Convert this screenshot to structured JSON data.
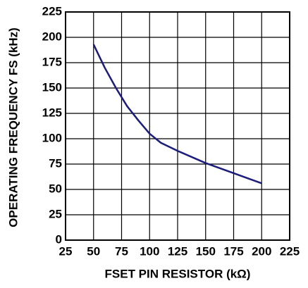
{
  "chart_data": {
    "type": "line",
    "x_label": "FSET PIN RESISTOR (kΩ)",
    "y_label": "OPERATING FREQUENCY FS (kHz)",
    "x": [
      50,
      60,
      70,
      80,
      90,
      100,
      110,
      125,
      150,
      175,
      200
    ],
    "series": [
      {
        "name": "Frequency",
        "color": "#1c1c7c",
        "values": [
          193,
          170,
          150,
          132,
          118,
          105,
          96,
          88,
          76,
          66,
          56
        ]
      }
    ],
    "xlim": [
      25,
      225
    ],
    "xticks": [
      25,
      50,
      75,
      100,
      125,
      150,
      175,
      200,
      225
    ],
    "ylim": [
      0,
      225
    ],
    "yticks": [
      0,
      25,
      50,
      75,
      100,
      125,
      150,
      175,
      200,
      225
    ],
    "grid": true
  }
}
